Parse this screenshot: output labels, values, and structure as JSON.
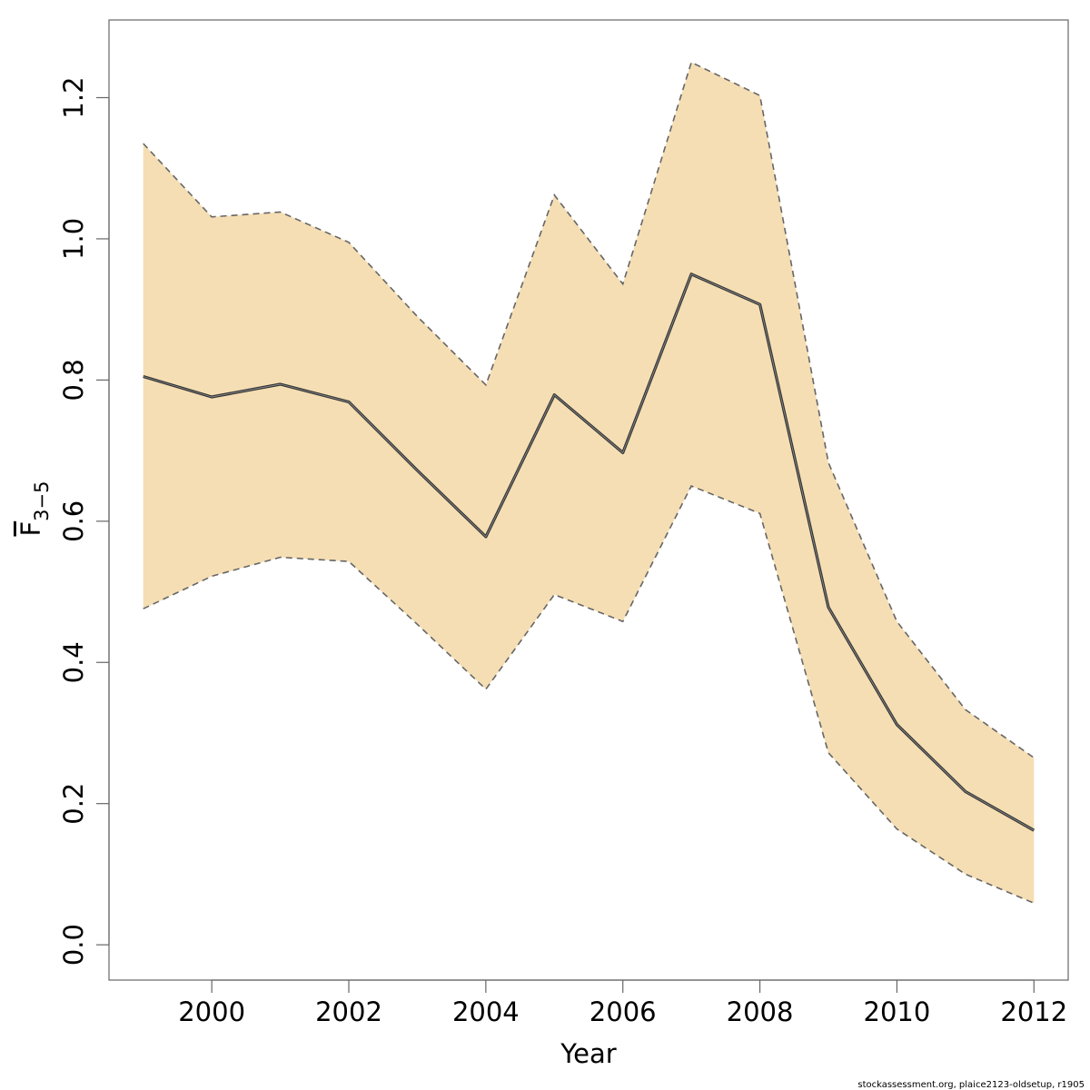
{
  "chart_data": {
    "type": "line",
    "title": "",
    "xlabel": "Year",
    "ylabel": {
      "main": "F",
      "subscript": "3−5"
    },
    "xlim": [
      1998.5,
      2012.5
    ],
    "ylim": [
      -0.05,
      1.31
    ],
    "x_ticks": [
      2000,
      2002,
      2004,
      2006,
      2008,
      2010,
      2012
    ],
    "y_ticks": [
      0.0,
      0.2,
      0.4,
      0.6,
      0.8,
      1.0,
      1.2
    ],
    "x": [
      1999,
      2000,
      2001,
      2002,
      2003,
      2004,
      2005,
      2006,
      2007,
      2008,
      2009,
      2010,
      2011,
      2012
    ],
    "series": [
      {
        "role": "estimate",
        "values": [
          0.805,
          0.776,
          0.794,
          0.769,
          0.672,
          0.578,
          0.779,
          0.697,
          0.95,
          0.907,
          0.478,
          0.312,
          0.217,
          0.162
        ]
      },
      {
        "role": "upper",
        "values": [
          1.135,
          1.031,
          1.038,
          0.995,
          0.89,
          0.793,
          1.062,
          0.936,
          1.25,
          1.203,
          0.683,
          0.458,
          0.333,
          0.265
        ]
      },
      {
        "role": "lower",
        "values": [
          0.476,
          0.522,
          0.549,
          0.543,
          0.454,
          0.362,
          0.496,
          0.458,
          0.65,
          0.611,
          0.272,
          0.164,
          0.1,
          0.059
        ]
      }
    ],
    "grid": false,
    "colors": {
      "band_fill": "#f5deb3",
      "estimate_line": "#333333",
      "bound_line": "#666666",
      "frame": "#666666"
    }
  },
  "footer": "stockassessment.org, plaice2123-oldsetup, r1905"
}
